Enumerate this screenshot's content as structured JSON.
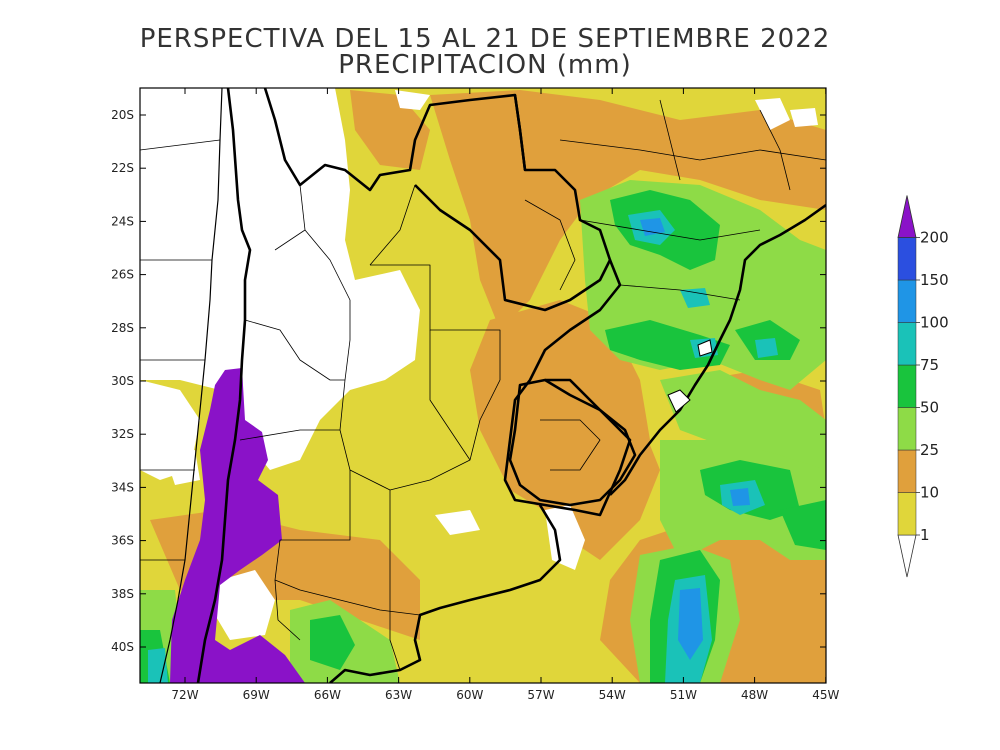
{
  "title_line1": "PERSPECTIVA DEL 15 AL 21 DE SEPTIEMBRE 2022",
  "title_line2": "PRECIPITACION (mm)",
  "lat_ticks": [
    "20S",
    "22S",
    "24S",
    "26S",
    "28S",
    "30S",
    "32S",
    "34S",
    "36S",
    "38S",
    "40S"
  ],
  "lon_ticks": [
    "72W",
    "69W",
    "66W",
    "63W",
    "60W",
    "57W",
    "54W",
    "51W",
    "48W",
    "45W"
  ],
  "legend": {
    "levels": [
      "1",
      "10",
      "25",
      "50",
      "75",
      "100",
      "150",
      "200"
    ],
    "colors": {
      "below_1": "#ffffff",
      "1-10": "#e0d63a",
      "10-25": "#e0a03c",
      "25-50": "#8edb47",
      "50-75": "#19c43d",
      "75-100": "#1ac2b8",
      "100-150": "#1f95e6",
      "150-200": "#2b4fe0",
      "above_200": "#8a12c8"
    }
  }
}
